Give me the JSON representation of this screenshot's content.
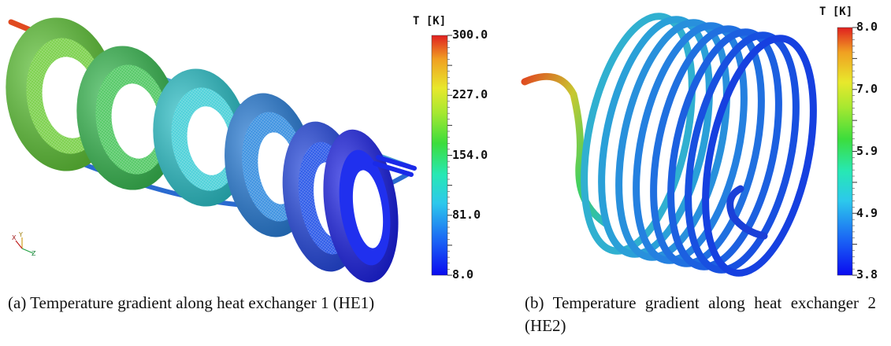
{
  "panel_a": {
    "colorbar": {
      "title": "T [K]",
      "ticks": [
        "300.0",
        "227.0",
        "154.0",
        "81.0",
        "8.0"
      ]
    },
    "axes": {
      "x": "X",
      "y": "Y",
      "z": "Z"
    },
    "caption": "(a) Temperature gradient along heat exchanger 1 (HE1)"
  },
  "panel_b": {
    "colorbar": {
      "title": "T [K]",
      "ticks": [
        "8.0",
        "7.0",
        "5.9",
        "4.9",
        "3.8"
      ]
    },
    "caption": "(b) Temperature gradient along heat exchanger 2 (HE2)"
  },
  "colormap": [
    "#0a0af0",
    "#1a62f5",
    "#2cc8ec",
    "#27e8b4",
    "#3cdd3c",
    "#a8e830",
    "#e8e82c",
    "#f0a022",
    "#e02020"
  ]
}
